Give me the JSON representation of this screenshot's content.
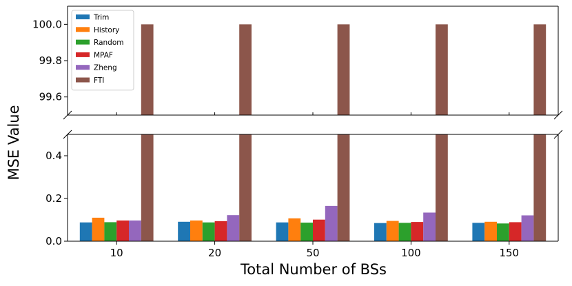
{
  "chart_data": {
    "type": "bar",
    "subtype": "grouped-broken-axis",
    "title": "",
    "xlabel": "Total Number of BSs",
    "ylabel": "MSE Value",
    "categories": [
      "10",
      "20",
      "50",
      "100",
      "150"
    ],
    "series": [
      {
        "name": "Trim",
        "color": "#1f77b4",
        "values": [
          0.088,
          0.091,
          0.088,
          0.085,
          0.086
        ]
      },
      {
        "name": "History",
        "color": "#ff7f0e",
        "values": [
          0.11,
          0.097,
          0.107,
          0.095,
          0.091
        ]
      },
      {
        "name": "Random",
        "color": "#2ca02c",
        "values": [
          0.089,
          0.088,
          0.087,
          0.086,
          0.083
        ]
      },
      {
        "name": "MPAF",
        "color": "#d62728",
        "values": [
          0.097,
          0.094,
          0.101,
          0.09,
          0.089
        ]
      },
      {
        "name": "Zheng",
        "color": "#9467bd",
        "values": [
          0.097,
          0.122,
          0.165,
          0.134,
          0.121
        ]
      },
      {
        "name": "FTI",
        "color": "#8c564b",
        "values": [
          100.0,
          100.0,
          100.0,
          100.0,
          100.0
        ]
      }
    ],
    "upper_axis": {
      "ylim": [
        99.5,
        100.1
      ],
      "ticks": [
        "99.6",
        "99.8",
        "100.0"
      ]
    },
    "lower_axis": {
      "ylim": [
        0.0,
        0.5
      ],
      "ticks": [
        "0.0",
        "0.2",
        "0.4"
      ]
    },
    "legend_position": "upper-left",
    "grid": false
  }
}
